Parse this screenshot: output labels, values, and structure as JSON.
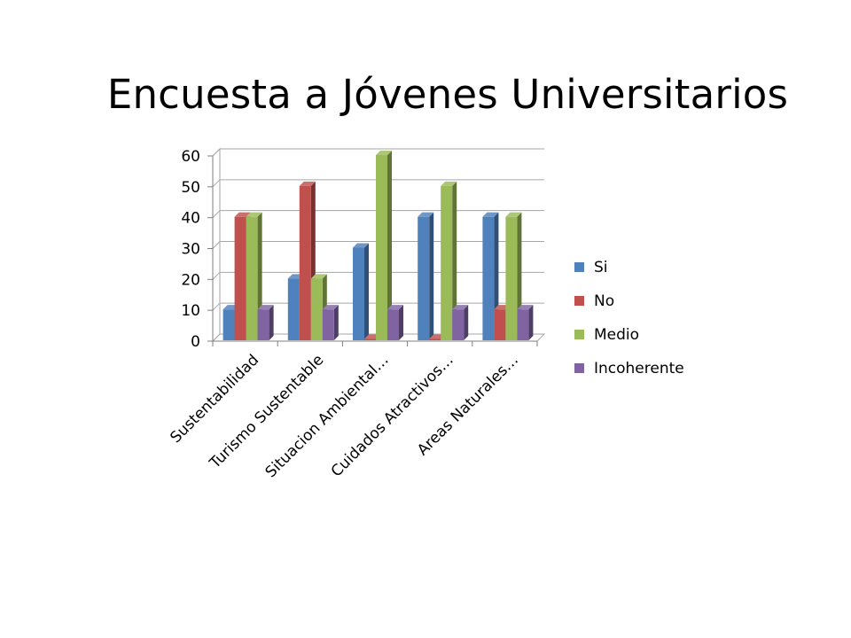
{
  "chart_data": {
    "type": "bar",
    "title": "Encuesta a Jóvenes Universitarios",
    "categories": [
      "Sustentabilidad",
      "Turismo Sustentable",
      "Situacion Ambiental…",
      "Cuidados Atractivos…",
      "Areas Naturales…"
    ],
    "series": [
      {
        "name": "Si",
        "color": "#4F81BD",
        "values": [
          10,
          20,
          30,
          40,
          40
        ]
      },
      {
        "name": "No",
        "color": "#C0504D",
        "values": [
          40,
          50,
          0,
          0,
          10
        ]
      },
      {
        "name": "Medio",
        "color": "#9BBB59",
        "values": [
          40,
          20,
          60,
          50,
          40
        ]
      },
      {
        "name": "Incoherente",
        "color": "#8064A2",
        "values": [
          10,
          10,
          10,
          10,
          10
        ]
      }
    ],
    "yticks": [
      "0",
      "10",
      "20",
      "30",
      "40",
      "50",
      "60"
    ],
    "ylim": [
      0,
      60
    ],
    "grid": true,
    "legend": "right",
    "style": "3d-clustered-column"
  }
}
